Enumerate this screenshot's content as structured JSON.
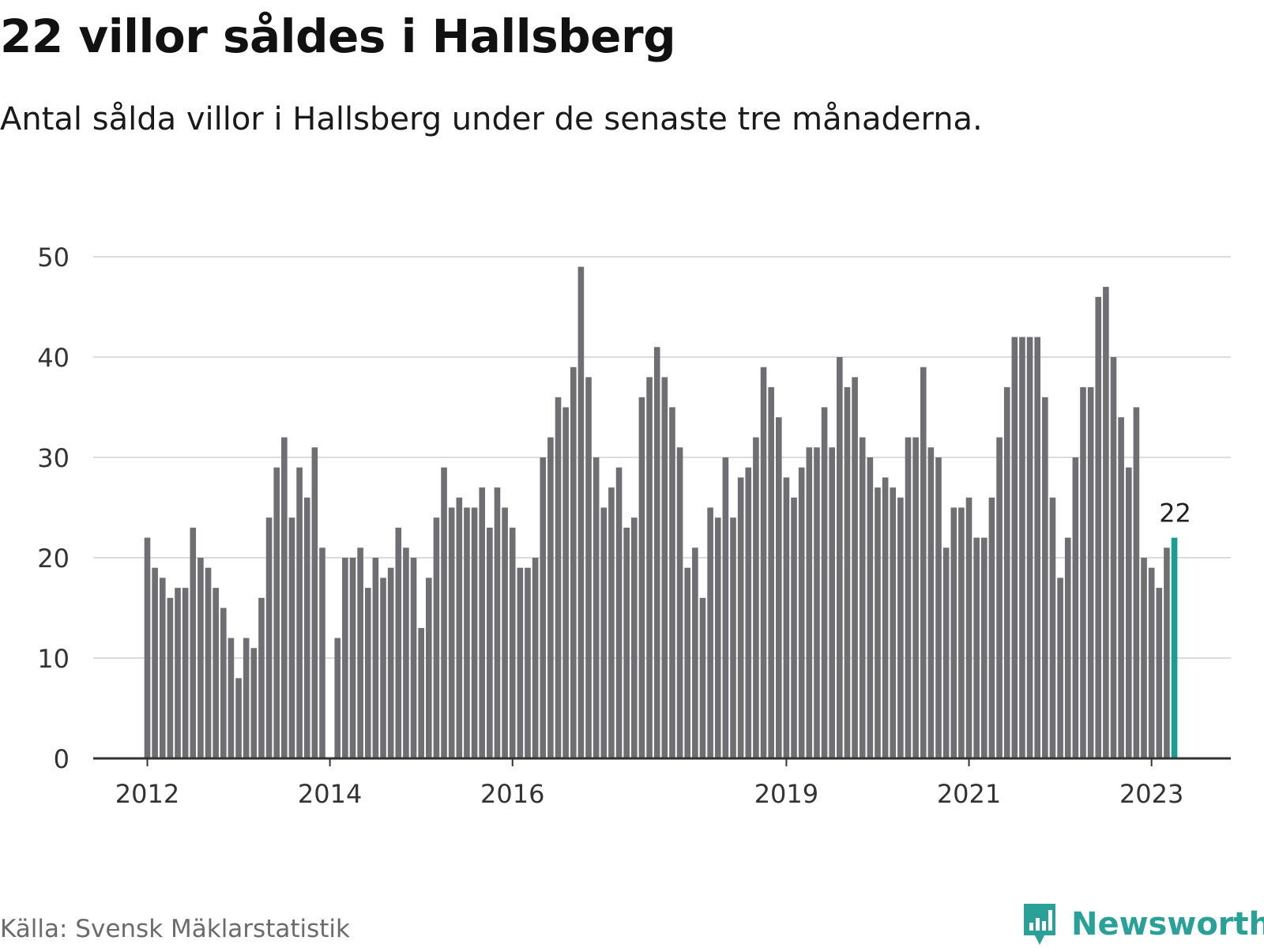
{
  "title": "22 villor såldes i Hallsberg",
  "subtitle": "Antal sålda villor i Hallsberg under de senaste tre månaderna.",
  "source": "Källa: Svensk Mäklarstatistik",
  "brand": "Newsworthy",
  "colors": {
    "bar": "#6e6e73",
    "highlight": "#1a9e93",
    "grid": "#dcdcdc",
    "axis": "#333333",
    "brand": "#2aa198"
  },
  "chart_data": {
    "type": "bar",
    "start": "2012-01",
    "frequency": "monthly",
    "values": [
      22,
      19,
      18,
      16,
      17,
      17,
      23,
      20,
      19,
      17,
      15,
      12,
      8,
      12,
      11,
      16,
      24,
      29,
      32,
      24,
      29,
      26,
      31,
      21,
      0,
      12,
      20,
      20,
      21,
      17,
      20,
      18,
      19,
      23,
      21,
      20,
      13,
      18,
      24,
      29,
      25,
      26,
      25,
      25,
      27,
      23,
      27,
      25,
      23,
      19,
      19,
      20,
      30,
      32,
      36,
      35,
      39,
      49,
      38,
      30,
      25,
      27,
      29,
      23,
      24,
      36,
      38,
      41,
      38,
      35,
      31,
      19,
      21,
      16,
      25,
      24,
      30,
      24,
      28,
      29,
      32,
      39,
      37,
      34,
      28,
      26,
      29,
      31,
      31,
      35,
      31,
      40,
      37,
      38,
      32,
      30,
      27,
      28,
      27,
      26,
      32,
      32,
      39,
      31,
      30,
      21,
      25,
      25,
      26,
      22,
      22,
      26,
      32,
      37,
      42,
      42,
      42,
      42,
      36,
      26,
      18,
      22,
      30,
      37,
      37,
      46,
      47,
      40,
      34,
      29,
      35,
      20,
      19,
      17,
      21,
      22
    ],
    "highlight_last": true,
    "highlight_label": "22",
    "y_ticks": [
      0,
      10,
      20,
      30,
      40,
      50
    ],
    "ylim": [
      0,
      50
    ],
    "x_ticks": [
      "2012",
      "2014",
      "2016",
      "2019",
      "2021",
      "2023"
    ],
    "grid": true
  }
}
